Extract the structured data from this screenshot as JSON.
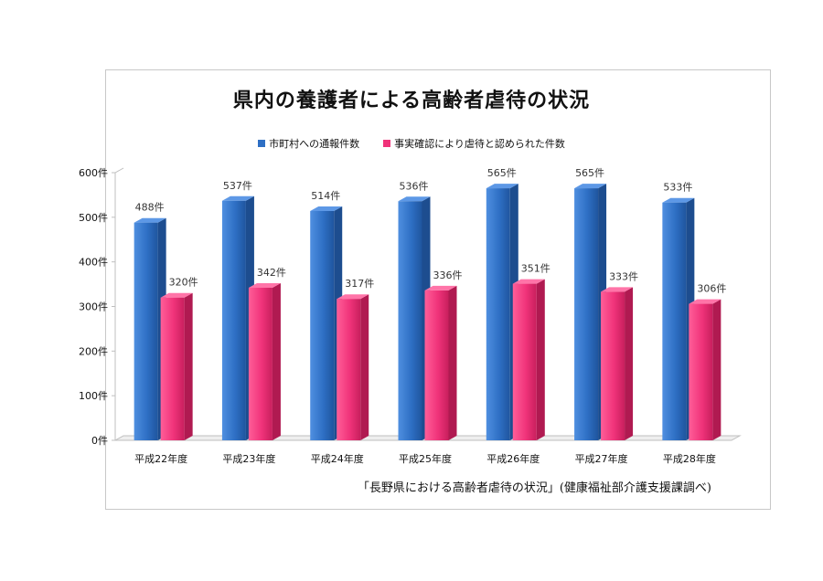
{
  "chart_data": {
    "type": "bar",
    "title": "県内の養護者による高齢者虐待の状況",
    "categories": [
      "平成22年度",
      "平成23年度",
      "平成24年度",
      "平成25年度",
      "平成26年度",
      "平成27年度",
      "平成28年度"
    ],
    "series": [
      {
        "name": "市町村への通報件数",
        "values": [
          488,
          537,
          514,
          536,
          565,
          565,
          533
        ],
        "labels": [
          "488件",
          "537件",
          "514件",
          "536件",
          "565件",
          "565件",
          "533件"
        ],
        "color": "#2e6fc4"
      },
      {
        "name": "事実確認により虐待と認められた件数",
        "values": [
          320,
          342,
          317,
          336,
          351,
          333,
          306
        ],
        "labels": [
          "320件",
          "342件",
          "317件",
          "336件",
          "351件",
          "333件",
          "306件"
        ],
        "color": "#f0337a"
      }
    ],
    "ylim": [
      0,
      600
    ],
    "yticks": [
      0,
      100,
      200,
      300,
      400,
      500,
      600
    ],
    "ytick_labels": [
      "0件",
      "100件",
      "200件",
      "300件",
      "400件",
      "500件",
      "600件"
    ],
    "legend_position": "top",
    "grid": false
  },
  "source": "「長野県における高齢者虐待の状況」(健康福祉部介護支援課調べ)"
}
